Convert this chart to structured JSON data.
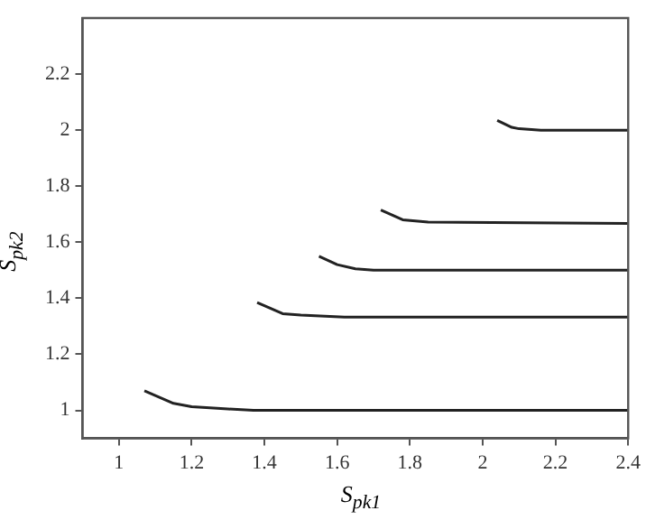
{
  "chart_data": {
    "type": "line",
    "xlabel": "S$_{pk1}$",
    "ylabel": "S$_{pk2}$",
    "xlim": [
      0.9,
      2.4
    ],
    "ylim": [
      0.9,
      2.4
    ],
    "xticks": [
      1,
      1.2,
      1.4,
      1.6,
      1.8,
      2,
      2.2,
      2.4
    ],
    "yticks": [
      1,
      1.2,
      1.4,
      1.6,
      1.8,
      2,
      2.2
    ],
    "grid": false,
    "legend": false,
    "marker": "none",
    "line_style": "solid",
    "series": [
      {
        "color": "#222222",
        "x": [
          1.07,
          1.15,
          1.2,
          1.3,
          1.37,
          2.4
        ],
        "values": [
          1.07,
          1.025,
          1.013,
          1.005,
          1.0,
          1.0
        ]
      },
      {
        "color": "#222222",
        "x": [
          1.38,
          1.45,
          1.5,
          1.62,
          2.4
        ],
        "values": [
          1.385,
          1.345,
          1.34,
          1.333,
          1.333
        ]
      },
      {
        "color": "#222222",
        "x": [
          1.55,
          1.6,
          1.65,
          1.7,
          2.4
        ],
        "values": [
          1.55,
          1.52,
          1.505,
          1.5,
          1.5
        ]
      },
      {
        "color": "#222222",
        "x": [
          1.72,
          1.78,
          1.85,
          2.4
        ],
        "values": [
          1.715,
          1.68,
          1.672,
          1.667
        ]
      },
      {
        "color": "#222222",
        "x": [
          2.04,
          2.08,
          2.1,
          2.16,
          2.4
        ],
        "values": [
          2.035,
          2.01,
          2.005,
          2.0,
          2.0
        ]
      }
    ]
  }
}
